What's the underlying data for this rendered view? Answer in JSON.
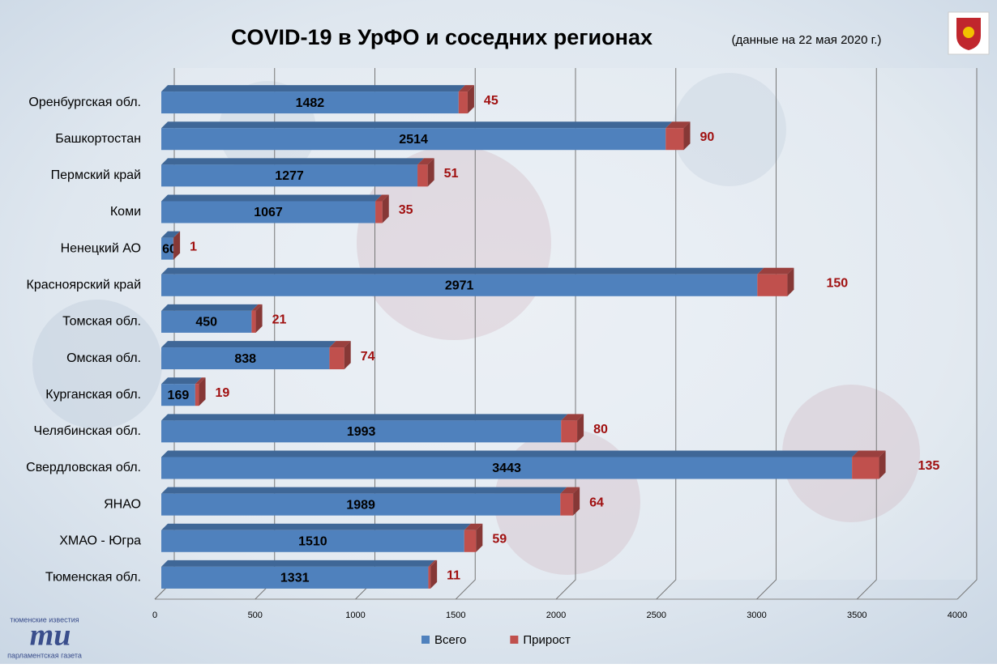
{
  "chart_data": {
    "type": "bar3d_stacked_horizontal",
    "title": "COVID-19 в УрФО и соседних регионах",
    "subtitle": "(данные на 22 мая 2020 г.)",
    "categories": [
      "Оренбургская обл.",
      "Башкортостан",
      "Пермский край",
      "Коми",
      "Ненецкий АО",
      "Красноярский край",
      "Томская обл.",
      "Омская обл.",
      "Курганская обл.",
      "Челябинская обл.",
      "Свердловская обл.",
      "ЯНАО",
      "ХМАО - Югра",
      "Тюменская обл."
    ],
    "series": [
      {
        "name": "Всего",
        "color": "#4f81bd",
        "values": [
          1482,
          2514,
          1277,
          1067,
          60,
          2971,
          450,
          838,
          169,
          1993,
          3443,
          1989,
          1510,
          1331
        ]
      },
      {
        "name": "Прирост",
        "color": "#c0504d",
        "values": [
          45,
          90,
          51,
          35,
          1,
          150,
          21,
          74,
          19,
          80,
          135,
          64,
          59,
          11
        ]
      }
    ],
    "xlim": [
      0,
      4000
    ],
    "xticks": [
      0,
      500,
      1000,
      1500,
      2000,
      2500,
      3000,
      3500,
      4000
    ],
    "grid": true,
    "legend": "bottom"
  },
  "logo": {
    "top": "тюменские известия",
    "mark": "ти",
    "bottom": "парламентская газета"
  }
}
